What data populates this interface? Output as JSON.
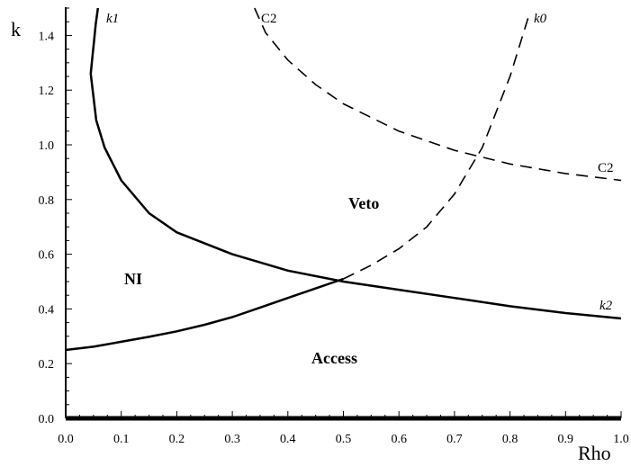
{
  "chart_data": {
    "type": "line",
    "title": "",
    "xlabel": "Rho",
    "ylabel": "k",
    "xlim": [
      0.0,
      1.0
    ],
    "ylim": [
      0.0,
      1.5
    ],
    "x_ticks": [
      "0.0",
      "0.1",
      "0.2",
      "0.3",
      "0.4",
      "0.5",
      "0.6",
      "0.7",
      "0.8",
      "0.9",
      "1.0"
    ],
    "y_ticks": [
      "0.0",
      "0.2",
      "0.4",
      "0.6",
      "0.8",
      "1.0",
      "1.2",
      "1.4"
    ],
    "grid": false,
    "series": [
      {
        "name": "k1",
        "style": "solid",
        "points": [
          [
            0.045,
            1.26
          ],
          [
            0.048,
            1.32
          ],
          [
            0.051,
            1.38
          ],
          [
            0.054,
            1.44
          ],
          [
            0.058,
            1.5
          ]
        ]
      },
      {
        "name": "k2",
        "style": "solid",
        "points": [
          [
            0.045,
            1.26
          ],
          [
            0.055,
            1.09
          ],
          [
            0.07,
            0.99
          ],
          [
            0.1,
            0.87
          ],
          [
            0.15,
            0.75
          ],
          [
            0.2,
            0.68
          ],
          [
            0.3,
            0.6
          ],
          [
            0.4,
            0.54
          ],
          [
            0.5,
            0.5
          ],
          [
            0.6,
            0.47
          ],
          [
            0.7,
            0.44
          ],
          [
            0.8,
            0.41
          ],
          [
            0.9,
            0.385
          ],
          [
            1.0,
            0.365
          ]
        ]
      },
      {
        "name": "k0",
        "style": "mixed",
        "points": [
          [
            0.0,
            0.25
          ],
          [
            0.05,
            0.262
          ],
          [
            0.1,
            0.28
          ],
          [
            0.15,
            0.298
          ],
          [
            0.2,
            0.318
          ],
          [
            0.25,
            0.342
          ],
          [
            0.3,
            0.37
          ],
          [
            0.35,
            0.405
          ],
          [
            0.4,
            0.44
          ],
          [
            0.45,
            0.475
          ],
          [
            0.5,
            0.51
          ],
          [
            0.55,
            0.56
          ],
          [
            0.6,
            0.62
          ],
          [
            0.65,
            0.7
          ],
          [
            0.7,
            0.82
          ],
          [
            0.75,
            0.99
          ],
          [
            0.8,
            1.25
          ],
          [
            0.835,
            1.48
          ]
        ]
      },
      {
        "name": "C2",
        "style": "dashed",
        "points": [
          [
            0.34,
            1.5
          ],
          [
            0.36,
            1.41
          ],
          [
            0.4,
            1.31
          ],
          [
            0.45,
            1.22
          ],
          [
            0.5,
            1.15
          ],
          [
            0.6,
            1.05
          ],
          [
            0.7,
            0.98
          ],
          [
            0.8,
            0.93
          ],
          [
            0.9,
            0.895
          ],
          [
            1.0,
            0.87
          ]
        ]
      }
    ],
    "curve_labels": {
      "k1": "k1",
      "k0": "k0",
      "k2": "k2",
      "c2_top": "C2",
      "c2_right": "C2"
    },
    "regions": {
      "veto": "Veto",
      "ni": "NI",
      "access": "Access"
    }
  }
}
